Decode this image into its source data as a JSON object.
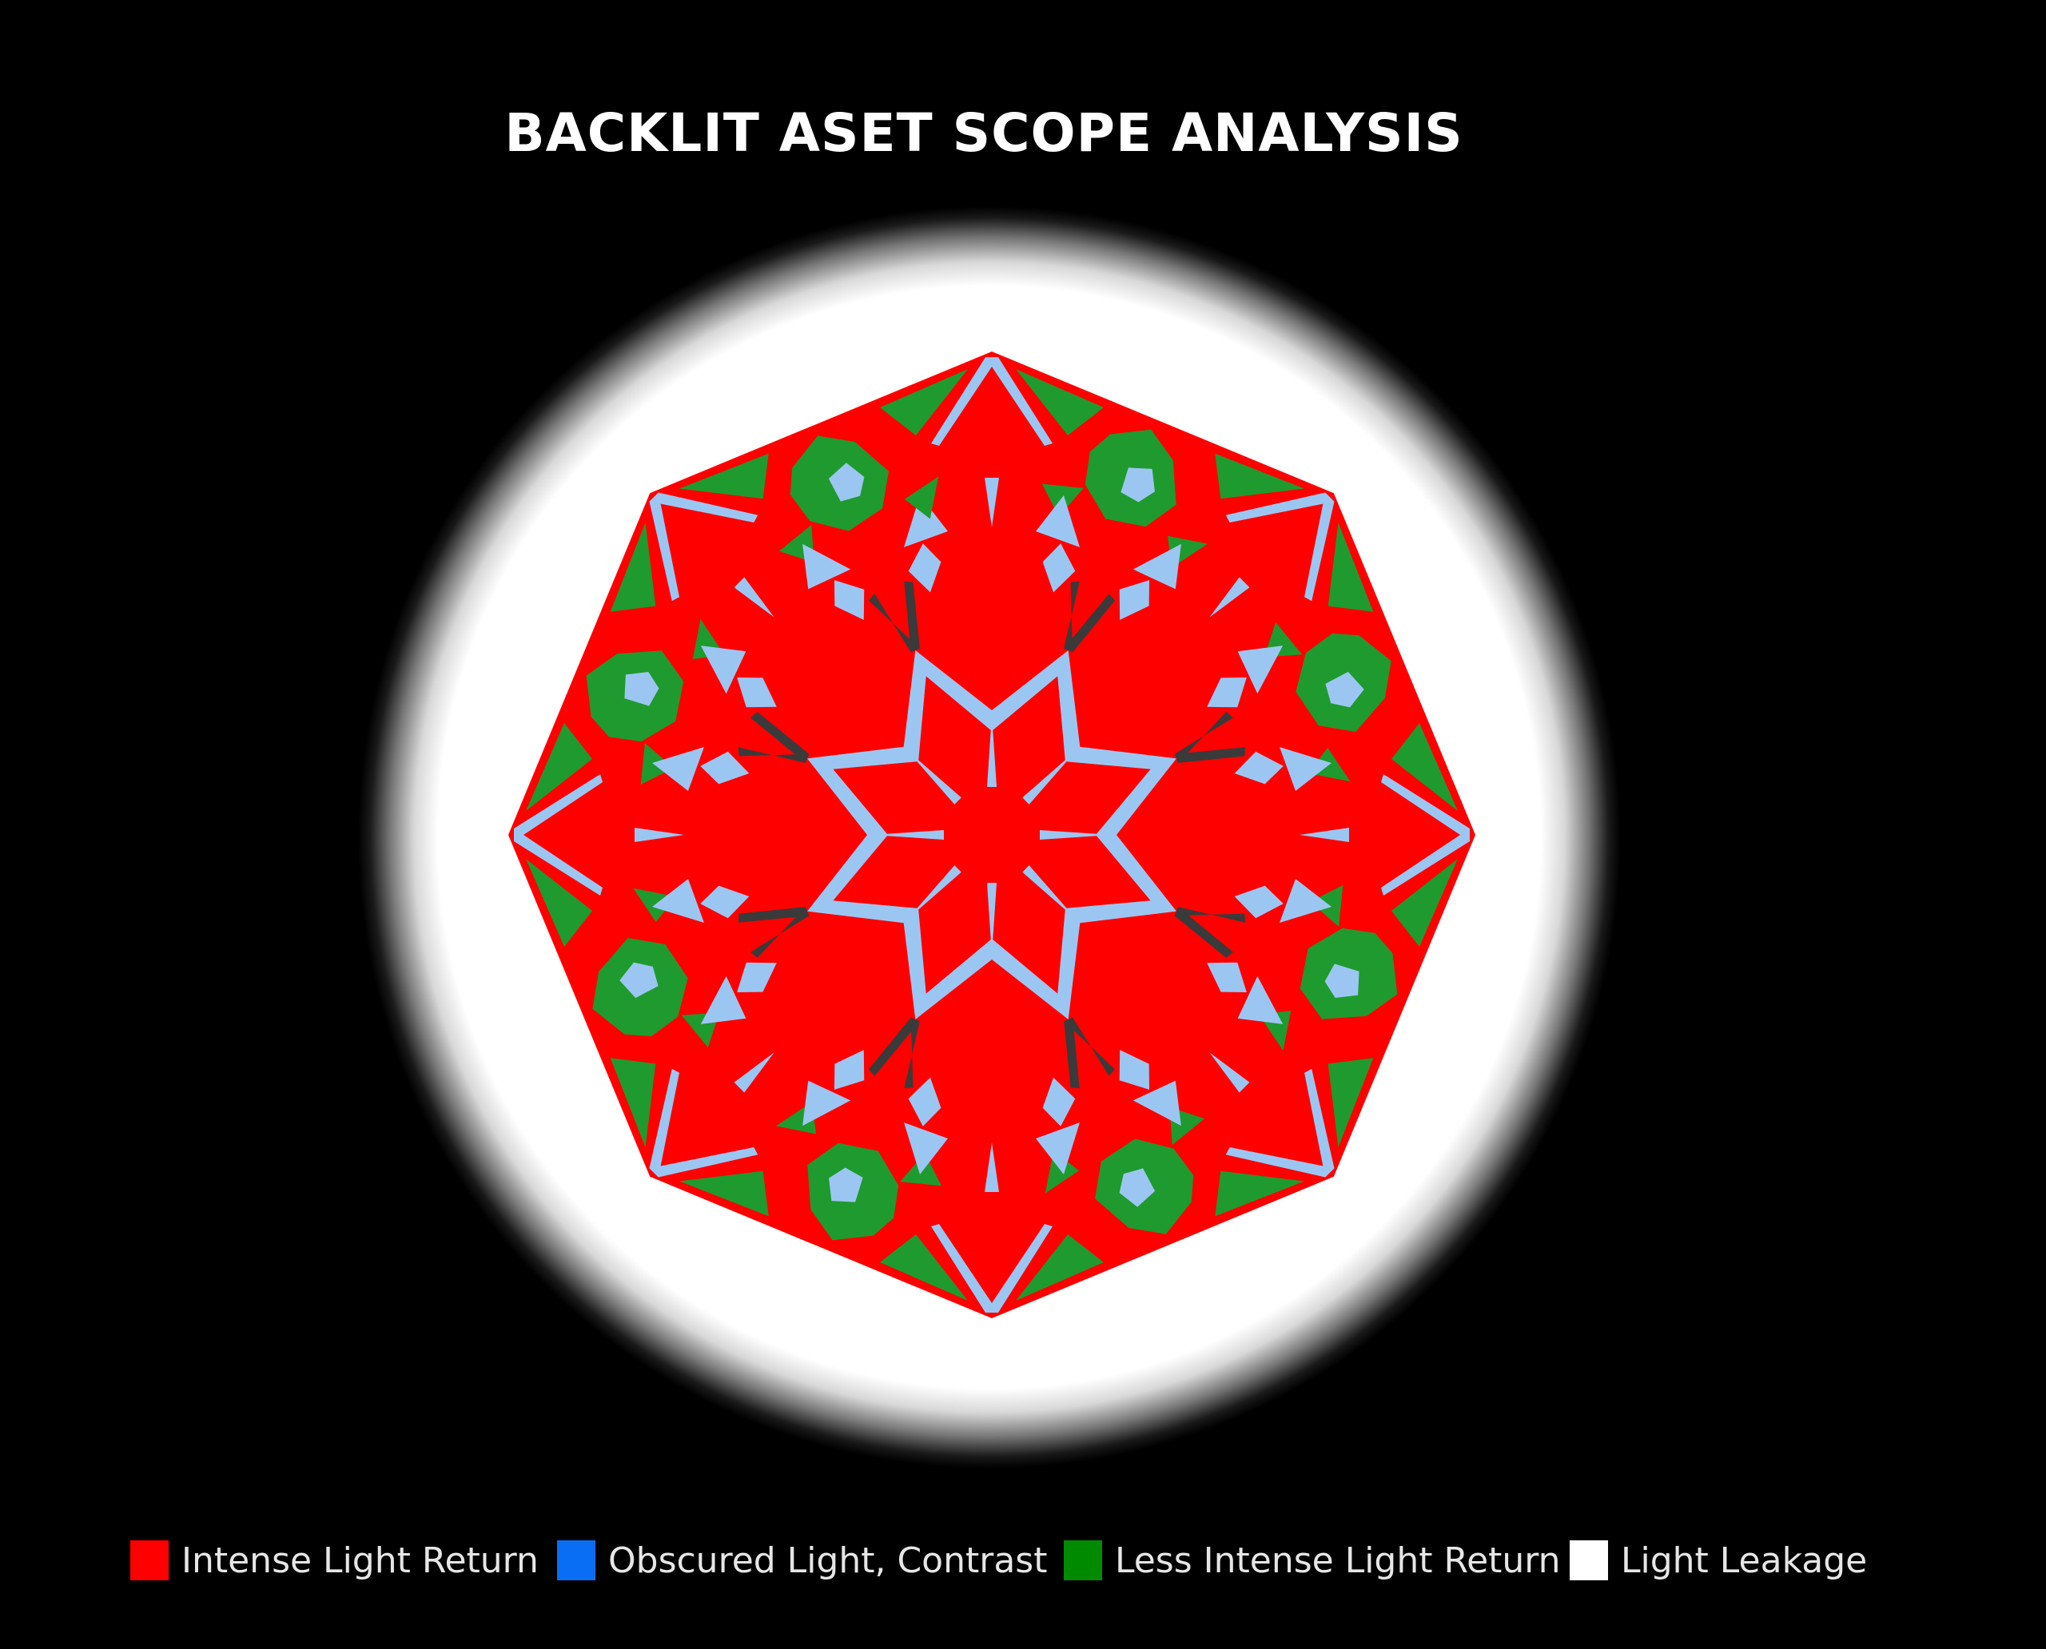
{
  "title": "BACKLIT ASET SCOPE ANALYSIS",
  "legend": [
    {
      "label": "Intense Light Return",
      "color": "#ff0000"
    },
    {
      "label": "Obscured Light, Contrast",
      "color": "#0a6ef5"
    },
    {
      "label": "Less Intense Light Return",
      "color": "#008a00"
    },
    {
      "label": "Light Leakage",
      "color": "#ffffff"
    }
  ],
  "scope_colors": {
    "intense": "#ff0000",
    "obscured": "#9cc6f2",
    "less_intense": "#1f9a2e",
    "leakage": "#ffffff",
    "shadow": "#3a3a3a"
  }
}
